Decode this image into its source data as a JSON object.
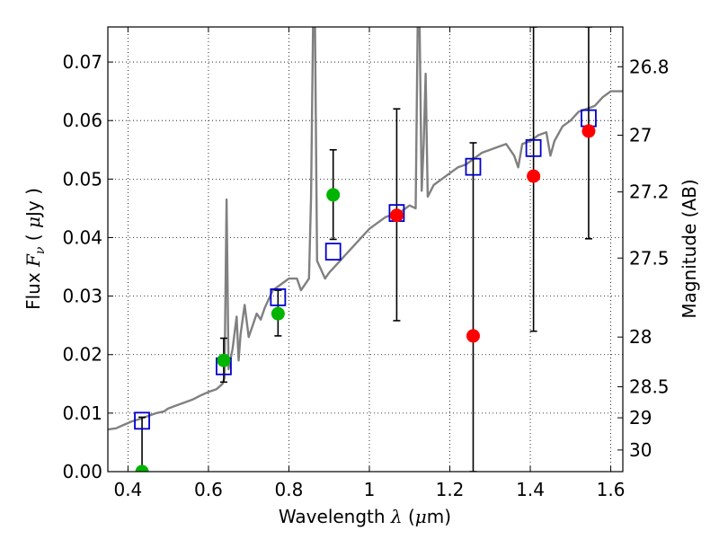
{
  "chart_data": {
    "type": "scatter",
    "title": "",
    "xlabel_parts": {
      "a": "Wavelength  ",
      "b": "λ",
      "c": " (",
      "d": "μ",
      "e": "m)"
    },
    "ylabel_parts": {
      "a": "Flux  ",
      "b": "F",
      "c": "ν",
      "d": "  ( ",
      "e": "μ",
      "f": "Jy )"
    },
    "y2label": "Magnitude (AB)",
    "xlim": [
      0.35,
      1.63
    ],
    "ylim": [
      0,
      0.076
    ],
    "grid": true,
    "x_ticks": [
      {
        "value": 0.4,
        "label": "0.4"
      },
      {
        "value": 0.6,
        "label": "0.6"
      },
      {
        "value": 0.8,
        "label": "0.8"
      },
      {
        "value": 1.0,
        "label": "1"
      },
      {
        "value": 1.2,
        "label": "1.2"
      },
      {
        "value": 1.4,
        "label": "1.4"
      },
      {
        "value": 1.6,
        "label": "1.6"
      }
    ],
    "y_ticks": [
      {
        "value": 0.0,
        "label": "0.00"
      },
      {
        "value": 0.01,
        "label": "0.01"
      },
      {
        "value": 0.02,
        "label": "0.02"
      },
      {
        "value": 0.03,
        "label": "0.03"
      },
      {
        "value": 0.04,
        "label": "0.04"
      },
      {
        "value": 0.05,
        "label": "0.05"
      },
      {
        "value": 0.06,
        "label": "0.06"
      },
      {
        "value": 0.07,
        "label": "0.07"
      }
    ],
    "y2_ticks": [
      {
        "flux": 0.0692,
        "label": "26.8"
      },
      {
        "flux": 0.0575,
        "label": "27"
      },
      {
        "flux": 0.0478,
        "label": "27.2"
      },
      {
        "flux": 0.0365,
        "label": "27.5"
      },
      {
        "flux": 0.023,
        "label": "28"
      },
      {
        "flux": 0.0145,
        "label": "28.5"
      },
      {
        "flux": 0.0092,
        "label": "29"
      },
      {
        "flux": 0.0037,
        "label": "30"
      }
    ],
    "model_spectrum": {
      "color": "#808080",
      "points": [
        [
          0.35,
          0.0072
        ],
        [
          0.37,
          0.0074
        ],
        [
          0.39,
          0.008
        ],
        [
          0.41,
          0.0086
        ],
        [
          0.43,
          0.009
        ],
        [
          0.45,
          0.0095
        ],
        [
          0.47,
          0.01
        ],
        [
          0.49,
          0.0103
        ],
        [
          0.5,
          0.0108
        ],
        [
          0.52,
          0.0113
        ],
        [
          0.54,
          0.0118
        ],
        [
          0.56,
          0.0123
        ],
        [
          0.58,
          0.013
        ],
        [
          0.6,
          0.0136
        ],
        [
          0.62,
          0.0141
        ],
        [
          0.635,
          0.015
        ],
        [
          0.64,
          0.016
        ],
        [
          0.645,
          0.0465
        ],
        [
          0.65,
          0.0175
        ],
        [
          0.66,
          0.021
        ],
        [
          0.67,
          0.0265
        ],
        [
          0.675,
          0.019
        ],
        [
          0.68,
          0.0235
        ],
        [
          0.69,
          0.0285
        ],
        [
          0.7,
          0.023
        ],
        [
          0.71,
          0.025
        ],
        [
          0.72,
          0.027
        ],
        [
          0.73,
          0.026
        ],
        [
          0.74,
          0.028
        ],
        [
          0.75,
          0.0295
        ],
        [
          0.76,
          0.031
        ],
        [
          0.78,
          0.032
        ],
        [
          0.8,
          0.033
        ],
        [
          0.82,
          0.033
        ],
        [
          0.83,
          0.031
        ],
        [
          0.84,
          0.032
        ],
        [
          0.85,
          0.033
        ],
        [
          0.855,
          0.047
        ],
        [
          0.86,
          0.076
        ],
        [
          0.865,
          0.076
        ],
        [
          0.87,
          0.036
        ],
        [
          0.88,
          0.0345
        ],
        [
          0.89,
          0.033
        ],
        [
          0.9,
          0.034
        ],
        [
          0.92,
          0.0355
        ],
        [
          0.94,
          0.037
        ],
        [
          0.96,
          0.0385
        ],
        [
          0.98,
          0.04
        ],
        [
          1.0,
          0.0415
        ],
        [
          1.02,
          0.0425
        ],
        [
          1.04,
          0.0435
        ],
        [
          1.06,
          0.044
        ],
        [
          1.08,
          0.0445
        ],
        [
          1.1,
          0.0455
        ],
        [
          1.115,
          0.045
        ],
        [
          1.12,
          0.076
        ],
        [
          1.125,
          0.076
        ],
        [
          1.13,
          0.048
        ],
        [
          1.135,
          0.056
        ],
        [
          1.14,
          0.068
        ],
        [
          1.145,
          0.047
        ],
        [
          1.16,
          0.049
        ],
        [
          1.18,
          0.05
        ],
        [
          1.2,
          0.051
        ],
        [
          1.22,
          0.052
        ],
        [
          1.24,
          0.0525
        ],
        [
          1.26,
          0.0535
        ],
        [
          1.28,
          0.0545
        ],
        [
          1.3,
          0.055
        ],
        [
          1.32,
          0.0555
        ],
        [
          1.34,
          0.056
        ],
        [
          1.36,
          0.054
        ],
        [
          1.37,
          0.052
        ],
        [
          1.38,
          0.056
        ],
        [
          1.4,
          0.0565
        ],
        [
          1.42,
          0.0575
        ],
        [
          1.44,
          0.058
        ],
        [
          1.45,
          0.054
        ],
        [
          1.46,
          0.0565
        ],
        [
          1.48,
          0.059
        ],
        [
          1.5,
          0.06
        ],
        [
          1.52,
          0.0615
        ],
        [
          1.54,
          0.062
        ],
        [
          1.56,
          0.0625
        ],
        [
          1.58,
          0.064
        ],
        [
          1.6,
          0.065
        ],
        [
          1.63,
          0.065
        ]
      ]
    },
    "series": [
      {
        "marker": "square",
        "color": "#0000cc",
        "points": [
          {
            "x": 0.435,
            "y": 0.0087
          },
          {
            "x": 0.638,
            "y": 0.018
          },
          {
            "x": 0.773,
            "y": 0.0298
          },
          {
            "x": 0.91,
            "y": 0.0376
          },
          {
            "x": 1.068,
            "y": 0.0442
          },
          {
            "x": 1.258,
            "y": 0.0521
          },
          {
            "x": 1.408,
            "y": 0.0553
          },
          {
            "x": 1.545,
            "y": 0.0604
          }
        ]
      },
      {
        "marker": "circle",
        "color": "#00b400",
        "points": [
          {
            "x": 0.435,
            "y": 0.0
          },
          {
            "x": 0.638,
            "y": 0.019
          },
          {
            "x": 0.773,
            "y": 0.027
          },
          {
            "x": 0.91,
            "y": 0.0473
          }
        ]
      },
      {
        "marker": "circle",
        "color": "#ff0000",
        "points": [
          {
            "x": 1.068,
            "y": 0.0438
          },
          {
            "x": 1.258,
            "y": 0.0232
          },
          {
            "x": 1.408,
            "y": 0.0505
          },
          {
            "x": 1.545,
            "y": 0.0582
          }
        ]
      }
    ],
    "error_bars": [
      {
        "x": 0.435,
        "ylo": 0.0,
        "yhi": 0.0093
      },
      {
        "x": 0.638,
        "ylo": 0.0153,
        "yhi": 0.0228
      },
      {
        "x": 0.773,
        "ylo": 0.0232,
        "yhi": 0.031
      },
      {
        "x": 0.91,
        "ylo": 0.0397,
        "yhi": 0.055
      },
      {
        "x": 1.068,
        "ylo": 0.0258,
        "yhi": 0.062
      },
      {
        "x": 1.258,
        "ylo": 0.0,
        "yhi": 0.0562
      },
      {
        "x": 1.408,
        "ylo": 0.024,
        "yhi": 0.076
      },
      {
        "x": 1.545,
        "ylo": 0.0398,
        "yhi": 0.076
      }
    ]
  }
}
